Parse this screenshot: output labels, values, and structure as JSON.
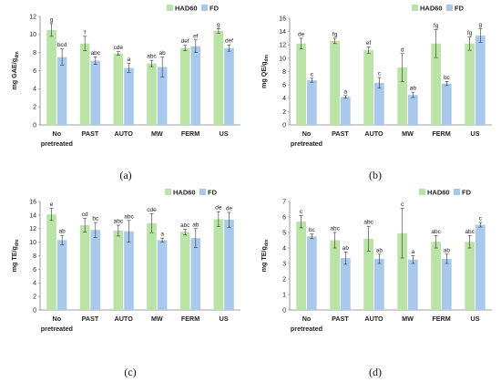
{
  "colors": {
    "had60": "#b9e4a6",
    "fd": "#a9c9ec",
    "axis": "#7f7f7f",
    "error": "#333333"
  },
  "chart_data": [
    {
      "type": "bar",
      "panel_label": "(a)",
      "ylabel_main": "mg GAE/g",
      "ylabel_sub": "dm",
      "ylim": [
        0,
        12
      ],
      "yticks": [
        0,
        2,
        4,
        6,
        8,
        10,
        12
      ],
      "categories": [
        "No pretreated",
        "PAST",
        "AUTO",
        "MW",
        "FERM",
        "US"
      ],
      "legend": "top-right",
      "series": [
        {
          "name": "HAD60",
          "values": [
            10.5,
            9.0,
            7.9,
            6.8,
            8.5,
            10.4
          ],
          "errors": [
            0.7,
            0.8,
            0.2,
            0.35,
            0.3,
            0.25
          ],
          "labels": [
            "g",
            "f",
            "cde",
            "abc",
            "def",
            "g"
          ]
        },
        {
          "name": "FD",
          "values": [
            7.5,
            7.1,
            6.3,
            6.4,
            8.7,
            8.5
          ],
          "errors": [
            0.9,
            0.4,
            0.5,
            1.1,
            0.7,
            0.35
          ],
          "labels": [
            "bcd",
            "abc",
            "a",
            "ab",
            "ef",
            "def"
          ]
        }
      ]
    },
    {
      "type": "bar",
      "panel_label": "(b)",
      "ylabel_main": "mg QE/g",
      "ylabel_sub": "dm",
      "ylim": [
        0,
        16
      ],
      "yticks": [
        0,
        2,
        4,
        6,
        8,
        10,
        12,
        14,
        16
      ],
      "categories": [
        "No pretreated",
        "PAST",
        "AUTO",
        "MW",
        "FERM",
        "US"
      ],
      "legend": "top-right",
      "series": [
        {
          "name": "HAD60",
          "values": [
            12.2,
            12.6,
            11.2,
            8.6,
            12.2,
            12.2
          ],
          "errors": [
            0.8,
            0.4,
            0.5,
            2.1,
            2.1,
            1.0
          ],
          "labels": [
            "de",
            "fg",
            "ef",
            "d",
            "fg",
            "fg"
          ]
        },
        {
          "name": "FD",
          "values": [
            6.7,
            4.2,
            6.3,
            4.5,
            6.2,
            13.4
          ],
          "errors": [
            0.3,
            0.2,
            0.8,
            0.4,
            0.3,
            1.0
          ],
          "labels": [
            "c",
            "a",
            "c",
            "ab",
            "bc",
            "g"
          ]
        }
      ]
    },
    {
      "type": "bar",
      "panel_label": "(c)",
      "ylabel_main": "mg TE/g",
      "ylabel_sub": "dm",
      "ylim": [
        0,
        16
      ],
      "yticks": [
        0,
        2,
        4,
        6,
        8,
        10,
        12,
        14,
        16
      ],
      "categories": [
        "No pretreated",
        "PAST",
        "AUTO",
        "MW",
        "FERM",
        "US"
      ],
      "legend": "top-right",
      "series": [
        {
          "name": "HAD60",
          "values": [
            14.1,
            12.5,
            11.7,
            12.8,
            11.5,
            13.4
          ],
          "errors": [
            0.9,
            1.0,
            0.8,
            1.4,
            0.4,
            1.1
          ],
          "labels": [
            "e",
            "cd",
            "abc",
            "cde",
            "abc",
            "de"
          ]
        },
        {
          "name": "FD",
          "values": [
            10.3,
            11.8,
            11.6,
            10.3,
            10.6,
            13.3
          ],
          "errors": [
            0.7,
            1.1,
            1.6,
            0.3,
            1.4,
            1.1
          ],
          "labels": [
            "ab",
            "bc",
            "abc",
            "a",
            "ab",
            "de"
          ]
        }
      ]
    },
    {
      "type": "bar",
      "panel_label": "(d)",
      "ylabel_main": "mg TE/g",
      "ylabel_sub": "dm",
      "ylim": [
        0,
        7
      ],
      "yticks": [
        0,
        1,
        2,
        3,
        4,
        5,
        6,
        7
      ],
      "categories": [
        "No pretreated",
        "PAST",
        "AUTO",
        "MW",
        "FERM",
        "US"
      ],
      "legend": "top-right",
      "series": [
        {
          "name": "HAD60",
          "values": [
            5.7,
            4.5,
            4.6,
            4.95,
            4.4,
            4.4
          ],
          "errors": [
            0.4,
            0.5,
            0.8,
            1.6,
            0.4,
            0.4
          ],
          "labels": [
            "c",
            "abc",
            "abc",
            "c",
            "abc",
            "abc"
          ]
        },
        {
          "name": "FD",
          "values": [
            4.75,
            3.35,
            3.3,
            3.25,
            3.3,
            5.5
          ],
          "errors": [
            0.15,
            0.4,
            0.3,
            0.25,
            0.3,
            0.15
          ],
          "labels": [
            "bc",
            "ab",
            "ab",
            "a",
            "ab",
            "c"
          ]
        }
      ]
    }
  ]
}
